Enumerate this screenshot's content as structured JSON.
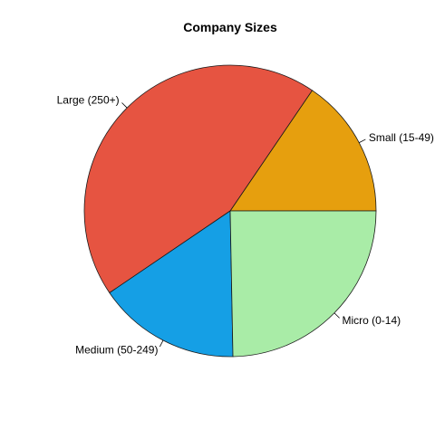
{
  "chart_data": {
    "type": "pie",
    "title": "Company Sizes",
    "slices": [
      {
        "label": "Small (15-49)",
        "value": 15.5,
        "color": "#E69F0E"
      },
      {
        "label": "Large (250+)",
        "value": 44.0,
        "color": "#E65441"
      },
      {
        "label": "Medium (50-249)",
        "value": 15.8,
        "color": "#159FE5"
      },
      {
        "label": "Micro (0-14)",
        "value": 24.7,
        "color": "#A9ECA7"
      }
    ],
    "direction": "counterclockwise",
    "start": "3 o'clock",
    "legend": "none",
    "grid": false
  }
}
